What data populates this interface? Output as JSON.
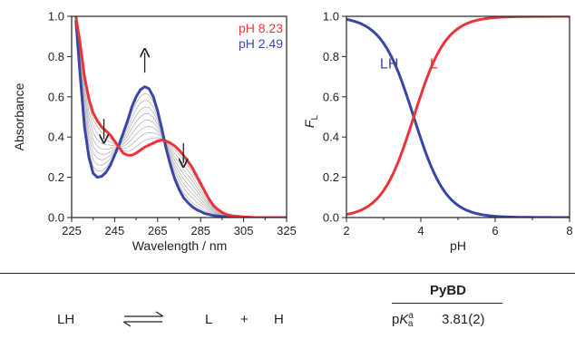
{
  "colors": {
    "red": "#e8353a",
    "blue": "#3a46a6",
    "gray": "#b5b5b5",
    "black": "#222222"
  },
  "chart_data": [
    {
      "type": "line",
      "xlabel": "Wavelength / nm",
      "ylabel": "Absorbance",
      "xlim": [
        225,
        325
      ],
      "ylim": [
        0,
        1.0
      ],
      "xticks": [
        225,
        245,
        265,
        285,
        305,
        325
      ],
      "yticks": [
        0.0,
        0.2,
        0.4,
        0.6,
        0.8,
        1.0
      ],
      "ytick_labels": [
        "0.0",
        "0.2",
        "0.4",
        "0.6",
        "0.8",
        "1.0"
      ],
      "x_minor_ticks": [
        235,
        255,
        275,
        295,
        315
      ],
      "legend_position": "top-right",
      "grid": false,
      "series": [
        {
          "name": "pH 8.23",
          "color": "#e8353a",
          "x": [
            227,
            229,
            231,
            233,
            235,
            237,
            239,
            241,
            243,
            245,
            247,
            249,
            251,
            253,
            255,
            257,
            259,
            261,
            263,
            265,
            267,
            269,
            271,
            273,
            275,
            277,
            279,
            281,
            283,
            285,
            287,
            289,
            291,
            293,
            295,
            297,
            300,
            305,
            310,
            315,
            320,
            325
          ],
          "y": [
            1.0,
            0.86,
            0.7,
            0.59,
            0.52,
            0.48,
            0.45,
            0.43,
            0.41,
            0.38,
            0.35,
            0.32,
            0.31,
            0.31,
            0.32,
            0.335,
            0.35,
            0.36,
            0.37,
            0.38,
            0.385,
            0.38,
            0.37,
            0.355,
            0.335,
            0.31,
            0.28,
            0.25,
            0.21,
            0.17,
            0.13,
            0.09,
            0.06,
            0.04,
            0.025,
            0.015,
            0.008,
            0.003,
            0.0,
            0.0,
            0.0,
            0.0
          ]
        },
        {
          "name": "pH 2.49",
          "color": "#3a46a6",
          "x": [
            227,
            229,
            231,
            233,
            235,
            237,
            239,
            241,
            243,
            245,
            247,
            249,
            251,
            253,
            255,
            257,
            259,
            261,
            263,
            265,
            267,
            269,
            271,
            273,
            275,
            277,
            279,
            281,
            283,
            285,
            287,
            289,
            291,
            293,
            295,
            297,
            300,
            305,
            310,
            315,
            320,
            325
          ],
          "y": [
            0.98,
            0.7,
            0.45,
            0.3,
            0.22,
            0.2,
            0.205,
            0.225,
            0.26,
            0.31,
            0.36,
            0.42,
            0.48,
            0.55,
            0.6,
            0.635,
            0.65,
            0.64,
            0.6,
            0.53,
            0.44,
            0.34,
            0.26,
            0.19,
            0.14,
            0.1,
            0.075,
            0.055,
            0.04,
            0.03,
            0.02,
            0.015,
            0.01,
            0.007,
            0.005,
            0.003,
            0.002,
            0.001,
            0.0,
            0.0,
            0.0,
            0.0
          ]
        }
      ],
      "intermediate_series_count": 8,
      "legend": [
        {
          "text": "pH 8.23",
          "color": "#e8353a"
        },
        {
          "text": "pH 2.49",
          "color": "#3a46a6"
        }
      ],
      "annotations": [
        {
          "type": "arrow-down",
          "x": 240,
          "y": 0.49
        },
        {
          "type": "arrow-up",
          "x": 259,
          "y": 0.72
        },
        {
          "type": "arrow-down",
          "x": 277,
          "y": 0.37
        }
      ]
    },
    {
      "type": "line",
      "xlabel": "pH",
      "ylabel": "F",
      "ylabel_subscript": "L",
      "xlim": [
        2,
        8
      ],
      "ylim": [
        0,
        1.0
      ],
      "xticks": [
        2,
        4,
        6,
        8
      ],
      "yticks": [
        0.0,
        0.2,
        0.4,
        0.6,
        0.8,
        1.0
      ],
      "ytick_labels": [
        "0.0",
        "0.2",
        "0.4",
        "0.6",
        "0.8",
        "1.0"
      ],
      "x_minor_ticks": [
        3,
        5,
        7
      ],
      "pKa": 3.81,
      "grid": false,
      "series": [
        {
          "name": "LH",
          "color": "#3a46a6",
          "x_range": [
            2,
            8
          ],
          "function": "1/(1+10^(pH-3.81))"
        },
        {
          "name": "L",
          "color": "#e8353a",
          "x_range": [
            2,
            8
          ],
          "function": "1/(1+10^(3.81-pH))"
        }
      ],
      "curve_labels": [
        {
          "text": "LH",
          "color": "#3a46a6",
          "x": 3.15,
          "y": 0.74
        },
        {
          "text": "L",
          "color": "#e8353a",
          "x": 4.35,
          "y": 0.74
        }
      ]
    }
  ],
  "equilibrium": {
    "reactant": "LH",
    "product1": "L",
    "plus": "+",
    "product2": "H"
  },
  "table": {
    "header": "PyBD",
    "row_label_prefix": "p",
    "row_label_italic": "K",
    "row_label_sub": "a",
    "row_label_sup": "a",
    "row_value": "3.81(2)"
  }
}
